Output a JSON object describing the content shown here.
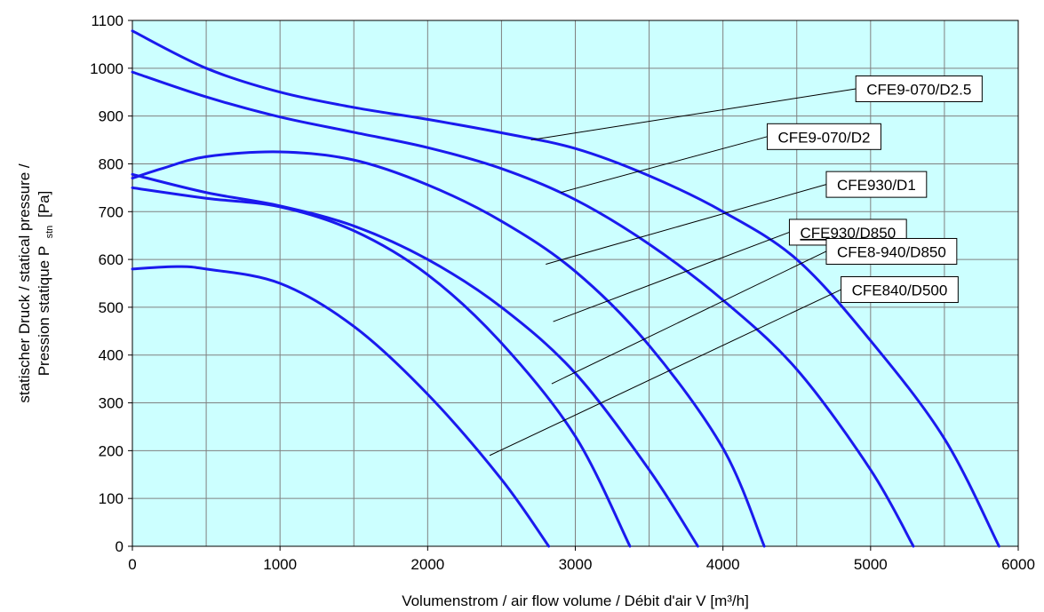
{
  "chart_data": {
    "type": "line",
    "xlabel": "Volumenstrom / air flow volume / Débit d'air V [m³/h]",
    "ylabel_line1": "statischer Druck / statical pressure /",
    "ylabel_line2_prefix": "Pression statique P",
    "ylabel_line2_sub": "stn",
    "ylabel_line2_suffix": "[Pa]",
    "xlim": [
      0,
      6000
    ],
    "ylim": [
      0,
      1100
    ],
    "x_ticks": [
      0,
      1000,
      2000,
      3000,
      4000,
      5000,
      6000
    ],
    "y_ticks": [
      0,
      100,
      200,
      300,
      400,
      500,
      600,
      700,
      800,
      900,
      1000,
      1100
    ],
    "grid": true,
    "minor_x_gridlines": [
      500,
      1500,
      2500,
      3500,
      4500,
      5500
    ],
    "colors": {
      "plot_background": "#ccffff",
      "line": "#1a1aee",
      "grid": "#808080",
      "leader": "#000000"
    },
    "series": [
      {
        "name": "CFE9-070/D2.5",
        "underline": false,
        "x": [
          0,
          500,
          1000,
          1500,
          2000,
          2500,
          3000,
          3500,
          4000,
          4500,
          5000,
          5500,
          5870
        ],
        "y": [
          1078,
          1000,
          950,
          918,
          893,
          865,
          832,
          775,
          700,
          600,
          430,
          225,
          0
        ]
      },
      {
        "name": "CFE9-070/D2",
        "underline": false,
        "x": [
          0,
          500,
          1000,
          1500,
          2000,
          2500,
          3000,
          3500,
          4000,
          4500,
          5000,
          5290
        ],
        "y": [
          992,
          940,
          898,
          866,
          834,
          790,
          725,
          632,
          515,
          370,
          160,
          0
        ]
      },
      {
        "name": "CFE930/D1",
        "underline": false,
        "x": [
          0,
          200,
          500,
          1000,
          1500,
          2000,
          2500,
          3000,
          3500,
          4000,
          4280
        ],
        "y": [
          770,
          790,
          815,
          825,
          808,
          756,
          680,
          575,
          420,
          205,
          0
        ]
      },
      {
        "name": "CFE930/D850",
        "underline": true,
        "x": [
          0,
          500,
          1000,
          1500,
          2000,
          2500,
          3000,
          3500,
          3830
        ],
        "y": [
          778,
          740,
          712,
          670,
          600,
          500,
          362,
          160,
          0
        ]
      },
      {
        "name": "CFE8-940/D850",
        "underline": false,
        "x": [
          0,
          500,
          1000,
          1500,
          2000,
          2500,
          3000,
          3370
        ],
        "y": [
          750,
          728,
          710,
          660,
          568,
          425,
          230,
          0
        ]
      },
      {
        "name": "CFE840/D500",
        "underline": false,
        "x": [
          0,
          300,
          500,
          1000,
          1500,
          2000,
          2500,
          2820
        ],
        "y": [
          580,
          585,
          580,
          550,
          460,
          318,
          140,
          0
        ]
      }
    ],
    "annotations": [
      {
        "text": "CFE9-070/D2.5",
        "points_to": [
          2700,
          850
        ],
        "label_at": [
          4900,
          930
        ]
      },
      {
        "text": "CFE9-070/D2",
        "points_to": [
          2900,
          740
        ],
        "label_at": [
          4300,
          830
        ]
      },
      {
        "text": "CFE930/D1",
        "points_to": [
          2800,
          590
        ],
        "label_at": [
          4700,
          730
        ]
      },
      {
        "text": "CFE930/D850",
        "points_to": [
          2850,
          470
        ],
        "label_at": [
          4450,
          630
        ]
      },
      {
        "text": "CFE8-940/D850",
        "points_to": [
          2840,
          340
        ],
        "label_at": [
          4700,
          590
        ]
      },
      {
        "text": "CFE840/D500",
        "points_to": [
          2420,
          190
        ],
        "label_at": [
          4800,
          510
        ]
      }
    ]
  }
}
